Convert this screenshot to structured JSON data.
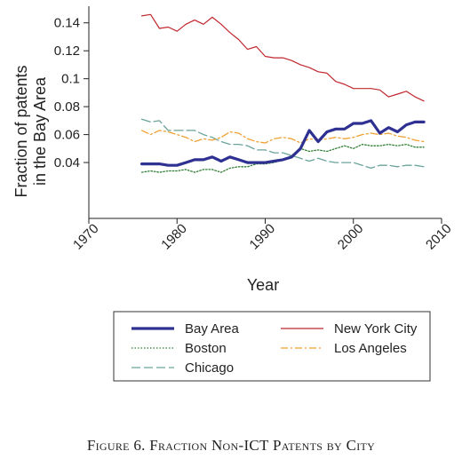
{
  "caption": "Figure 6. Fraction Non-ICT Patents by City",
  "chart_data": {
    "type": "line",
    "title": "",
    "xlabel": "Year",
    "ylabel_lines": [
      "Fraction of patents",
      "in the Bay Area"
    ],
    "xlim": [
      1970,
      2010
    ],
    "ylim": [
      0,
      0.15
    ],
    "x_ticks": [
      1970,
      1980,
      1990,
      2000,
      2010
    ],
    "y_ticks": [
      0.04,
      0.06,
      0.08,
      0.1,
      0.12,
      0.14
    ],
    "y_tick_labels": [
      "0.04",
      "0.06",
      "0.08",
      "0.1",
      "0.12",
      "0.14"
    ],
    "grid": false,
    "legend_position": "bottom",
    "x": [
      1976,
      1977,
      1978,
      1979,
      1980,
      1981,
      1982,
      1983,
      1984,
      1985,
      1986,
      1987,
      1988,
      1989,
      1990,
      1991,
      1992,
      1993,
      1994,
      1995,
      1996,
      1997,
      1998,
      1999,
      2000,
      2001,
      2002,
      2003,
      2004,
      2005,
      2006,
      2007,
      2008
    ],
    "series": [
      {
        "name": "Bay Area",
        "color": "#2e3192",
        "style": "solid-thick",
        "values": [
          0.039,
          0.039,
          0.039,
          0.038,
          0.038,
          0.04,
          0.042,
          0.042,
          0.044,
          0.041,
          0.044,
          0.042,
          0.04,
          0.04,
          0.04,
          0.041,
          0.042,
          0.044,
          0.05,
          0.063,
          0.055,
          0.062,
          0.064,
          0.064,
          0.068,
          0.068,
          0.07,
          0.061,
          0.065,
          0.062,
          0.067,
          0.069,
          0.069
        ]
      },
      {
        "name": "New York City",
        "color": "#c0272d",
        "style": "solid",
        "values": [
          0.145,
          0.146,
          0.136,
          0.137,
          0.134,
          0.139,
          0.142,
          0.139,
          0.144,
          0.139,
          0.133,
          0.128,
          0.121,
          0.123,
          0.116,
          0.115,
          0.115,
          0.113,
          0.11,
          0.108,
          0.105,
          0.104,
          0.098,
          0.096,
          0.093,
          0.093,
          0.093,
          0.092,
          0.087,
          0.089,
          0.091,
          0.087,
          0.084
        ]
      },
      {
        "name": "Boston",
        "color": "#2e7d32",
        "style": "dotted",
        "values": [
          0.033,
          0.034,
          0.033,
          0.034,
          0.034,
          0.035,
          0.033,
          0.035,
          0.035,
          0.033,
          0.036,
          0.037,
          0.037,
          0.039,
          0.039,
          0.04,
          0.042,
          0.045,
          0.05,
          0.048,
          0.049,
          0.048,
          0.05,
          0.052,
          0.05,
          0.053,
          0.052,
          0.052,
          0.053,
          0.052,
          0.053,
          0.051,
          0.051
        ]
      },
      {
        "name": "Los Angeles",
        "color": "#f0a030",
        "style": "dashdot",
        "values": [
          0.063,
          0.06,
          0.063,
          0.062,
          0.06,
          0.058,
          0.055,
          0.057,
          0.056,
          0.058,
          0.062,
          0.061,
          0.057,
          0.055,
          0.054,
          0.057,
          0.058,
          0.057,
          0.054,
          0.057,
          0.056,
          0.057,
          0.058,
          0.057,
          0.058,
          0.06,
          0.061,
          0.06,
          0.061,
          0.059,
          0.058,
          0.056,
          0.055
        ]
      },
      {
        "name": "Chicago",
        "color": "#6aa39a",
        "style": "longdash",
        "values": [
          0.071,
          0.069,
          0.07,
          0.063,
          0.063,
          0.063,
          0.063,
          0.06,
          0.058,
          0.055,
          0.053,
          0.053,
          0.052,
          0.049,
          0.049,
          0.047,
          0.047,
          0.045,
          0.043,
          0.041,
          0.043,
          0.041,
          0.04,
          0.04,
          0.04,
          0.038,
          0.036,
          0.038,
          0.038,
          0.037,
          0.038,
          0.038,
          0.037
        ]
      }
    ]
  },
  "legend_order": [
    [
      "Bay Area",
      "New York City"
    ],
    [
      "Boston",
      "Los Angeles"
    ],
    [
      "Chicago"
    ]
  ]
}
